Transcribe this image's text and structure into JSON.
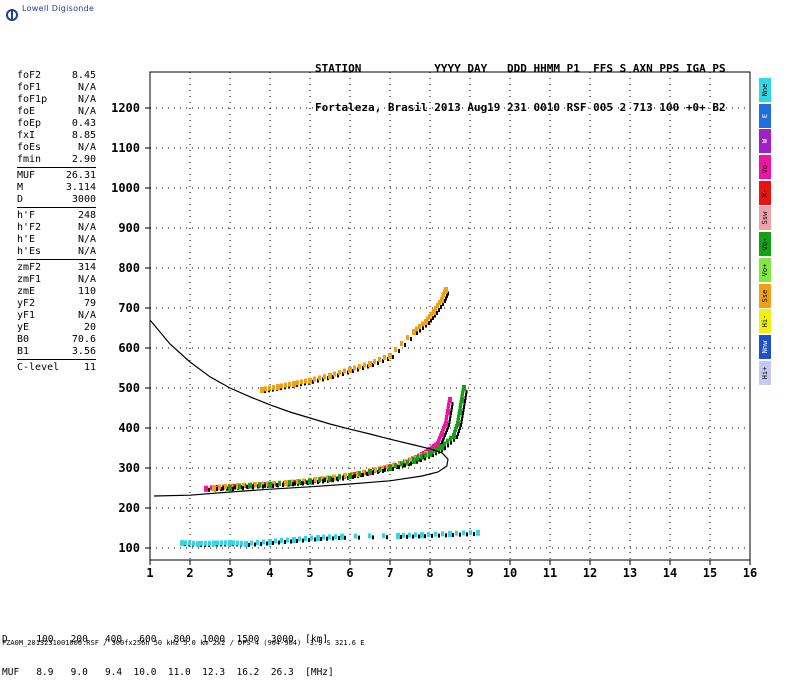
{
  "app": {
    "logo_text": "Lowell Digisonde"
  },
  "header": {
    "line1": "STATION           YYYY DAY   DDD HHMM P1  FFS S AXN PPS IGA PS",
    "line2": "Fortaleza, Brasil 2013 Aug19 231 0010 RSF 005 2 713 100 +0+ B2"
  },
  "params": [
    {
      "name": "foF2",
      "value": "8.45"
    },
    {
      "name": "foF1",
      "value": "N/A"
    },
    {
      "name": "foF1p",
      "value": "N/A"
    },
    {
      "name": "foE",
      "value": "N/A"
    },
    {
      "name": "foEp",
      "value": "0.43"
    },
    {
      "name": "fxI",
      "value": "8.85"
    },
    {
      "name": "foEs",
      "value": "N/A"
    },
    {
      "name": "fmin",
      "value": "2.90"
    },
    {
      "sep": true
    },
    {
      "name": "MUF",
      "value": "26.31"
    },
    {
      "name": "M",
      "value": "3.114"
    },
    {
      "name": "D",
      "value": "3000"
    },
    {
      "sep": true
    },
    {
      "name": "h'F",
      "value": "248"
    },
    {
      "name": "h'F2",
      "value": "N/A"
    },
    {
      "name": "h'E",
      "value": "N/A"
    },
    {
      "name": "h'Es",
      "value": "N/A"
    },
    {
      "sep": true
    },
    {
      "name": "zmF2",
      "value": "314"
    },
    {
      "name": "zmF1",
      "value": "N/A"
    },
    {
      "name": "zmE",
      "value": "110"
    },
    {
      "name": "yF2",
      "value": "79"
    },
    {
      "name": "yF1",
      "value": "N/A"
    },
    {
      "name": "yE",
      "value": "20"
    },
    {
      "name": "B0",
      "value": "70.6"
    },
    {
      "name": "B1",
      "value": "3.56"
    },
    {
      "sep": true
    },
    {
      "name": "C-level",
      "value": "11"
    }
  ],
  "legend": [
    {
      "label": "Nne",
      "color": "#33d6e6",
      "text_color": "#000000"
    },
    {
      "label": "E",
      "color": "#1e6fdc",
      "text_color": "#ffffff"
    },
    {
      "label": "W",
      "color": "#a020c8",
      "text_color": "#ffffff"
    },
    {
      "label": "Vo-",
      "color": "#f014a0",
      "text_color": "#000000"
    },
    {
      "label": "X-",
      "color": "#ee1111",
      "text_color": "#000000"
    },
    {
      "label": "Ssw",
      "color": "#f0a0a8",
      "text_color": "#000000"
    },
    {
      "label": "Vo-",
      "color": "#14a014",
      "text_color": "#000000"
    },
    {
      "label": "Vo+",
      "color": "#80e840",
      "text_color": "#000000"
    },
    {
      "label": "Sse",
      "color": "#f0a010",
      "text_color": "#000000"
    },
    {
      "label": "Hi-",
      "color": "#f0f014",
      "text_color": "#000000"
    },
    {
      "label": "Nnw",
      "color": "#1e50c8",
      "text_color": "#ffffff"
    },
    {
      "label": "Hi+",
      "color": "#c8c8f0",
      "text_color": "#000000"
    }
  ],
  "bottom": {
    "d_row": "D     100   200   400   600   800  1000  1500  3000  [km]",
    "muf_row": "MUF   8.9   9.0   9.4  10.0  11.0  12.3  16.2  26.3  [MHz]"
  },
  "footer": "FZA0M_2013231001000.RSF / 300fx256h 50 kHz 5.0 km 2x2 / DPS-4 (904-904)  3.9 S 321.6 E",
  "chart_data": {
    "type": "scatter",
    "title": "",
    "xlabel": "",
    "ylabel": "",
    "xlim": [
      1,
      16
    ],
    "ylim": [
      70,
      1290
    ],
    "x_ticks": [
      1,
      2,
      3,
      4,
      5,
      6,
      7,
      8,
      9,
      10,
      11,
      12,
      13,
      14,
      15,
      16
    ],
    "y_ticks": [
      100,
      200,
      300,
      400,
      500,
      600,
      700,
      800,
      900,
      1000,
      1100,
      1200
    ],
    "grid": true,
    "profile_curve": [
      [
        1.0,
        670
      ],
      [
        1.5,
        610
      ],
      [
        2.0,
        565
      ],
      [
        2.5,
        528
      ],
      [
        3.0,
        500
      ],
      [
        3.5,
        478
      ],
      [
        4.0,
        458
      ],
      [
        4.5,
        440
      ],
      [
        5.0,
        425
      ],
      [
        5.5,
        410
      ],
      [
        6.0,
        397
      ],
      [
        6.5,
        385
      ],
      [
        7.0,
        372
      ],
      [
        7.5,
        360
      ],
      [
        8.0,
        348
      ],
      [
        8.3,
        338
      ],
      [
        8.45,
        322
      ],
      [
        8.42,
        305
      ],
      [
        8.2,
        290
      ],
      [
        7.8,
        280
      ],
      [
        7.0,
        268
      ],
      [
        6.0,
        260
      ],
      [
        5.0,
        253
      ],
      [
        4.0,
        247
      ],
      [
        3.0,
        240
      ],
      [
        2.0,
        232
      ],
      [
        1.1,
        230
      ]
    ],
    "echo_traces": [
      {
        "name": "F2 ordinary",
        "color": "#f014a0",
        "points": [
          [
            2.4,
            248
          ],
          [
            3.0,
            252
          ],
          [
            3.5,
            256
          ],
          [
            4.0,
            258
          ],
          [
            4.5,
            262
          ],
          [
            5.0,
            266
          ],
          [
            5.5,
            272
          ],
          [
            6.0,
            280
          ],
          [
            6.5,
            290
          ],
          [
            7.0,
            302
          ],
          [
            7.5,
            318
          ],
          [
            7.8,
            332
          ],
          [
            8.0,
            345
          ],
          [
            8.2,
            360
          ],
          [
            8.3,
            385
          ],
          [
            8.4,
            410
          ],
          [
            8.45,
            440
          ],
          [
            8.5,
            470
          ]
        ]
      },
      {
        "name": "F2 ordinary 2",
        "color": "#f0a010",
        "points": [
          [
            2.6,
            250
          ],
          [
            3.2,
            255
          ],
          [
            3.8,
            258
          ],
          [
            4.4,
            262
          ],
          [
            5.0,
            268
          ],
          [
            5.6,
            276
          ],
          [
            6.2,
            285
          ],
          [
            6.8,
            298
          ],
          [
            7.4,
            312
          ],
          [
            7.9,
            335
          ]
        ]
      },
      {
        "name": "F2 extraordinary",
        "color": "#14a014",
        "points": [
          [
            3.0,
            250
          ],
          [
            4.0,
            258
          ],
          [
            5.0,
            266
          ],
          [
            6.0,
            280
          ],
          [
            7.0,
            300
          ],
          [
            7.6,
            318
          ],
          [
            8.0,
            335
          ],
          [
            8.3,
            352
          ],
          [
            8.6,
            380
          ],
          [
            8.7,
            410
          ],
          [
            8.75,
            440
          ],
          [
            8.8,
            470
          ],
          [
            8.85,
            500
          ]
        ]
      },
      {
        "name": "Multiple hop 2F",
        "color": "#f0a010",
        "points": [
          [
            3.8,
            495
          ],
          [
            4.2,
            502
          ],
          [
            4.6,
            510
          ],
          [
            5.0,
            518
          ],
          [
            5.5,
            530
          ],
          [
            6.0,
            545
          ],
          [
            6.5,
            560
          ],
          [
            7.0,
            580
          ],
          [
            7.6,
            640
          ],
          [
            7.9,
            665
          ],
          [
            8.1,
            690
          ],
          [
            8.3,
            720
          ],
          [
            8.4,
            745
          ]
        ]
      },
      {
        "name": "E layer",
        "color": "#33d6e6",
        "points": [
          [
            1.8,
            112
          ],
          [
            2.2,
            110
          ],
          [
            2.6,
            111
          ],
          [
            3.0,
            112
          ],
          [
            3.4,
            110
          ],
          [
            4.0,
            115
          ],
          [
            4.6,
            120
          ],
          [
            5.2,
            125
          ],
          [
            5.8,
            128
          ],
          [
            7.2,
            130
          ],
          [
            7.8,
            132
          ],
          [
            8.5,
            135
          ],
          [
            9.2,
            138
          ]
        ]
      }
    ]
  }
}
